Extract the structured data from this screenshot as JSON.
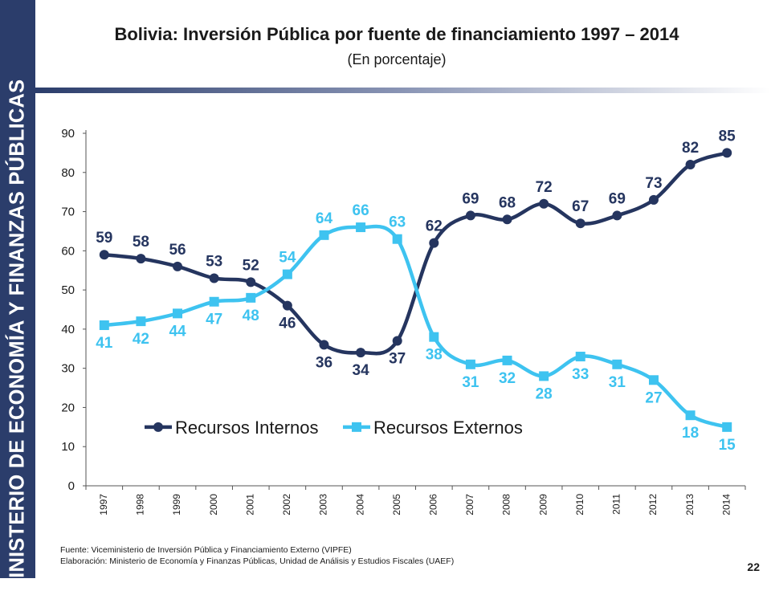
{
  "sidebar": {
    "label": "MINISTERIO DE ECONOMÍA Y FINANZAS PÚBLICAS"
  },
  "header": {
    "title": "Bolivia: Inversión Pública por fuente de financiamiento 1997 – 2014",
    "subtitle": "(En porcentaje)"
  },
  "footer": {
    "source": "Fuente: Viceministerio de Inversión Pública y Financiamiento Externo (VIPFE)",
    "elaboration": "Elaboración: Ministerio de Economía y Finanzas Públicas, Unidad de Análisis y Estudios Fiscales (UAEF)",
    "page_number": "22"
  },
  "colors": {
    "internos": "#25355f",
    "externos": "#3ec3f0",
    "sidebar": "#2b3d6b"
  },
  "chart_data": {
    "type": "line",
    "title": "Bolivia: Inversión Pública por fuente de financiamiento 1997 – 2014",
    "xlabel": "",
    "ylabel": "",
    "ylim": [
      0,
      90
    ],
    "yticks": [
      0,
      10,
      20,
      30,
      40,
      50,
      60,
      70,
      80,
      90
    ],
    "categories": [
      "1997",
      "1998",
      "1999",
      "2000",
      "2001",
      "2002",
      "2003",
      "2004",
      "2005",
      "2006",
      "2007",
      "2008",
      "2009",
      "2010",
      "2011",
      "2012",
      "2013",
      "2014"
    ],
    "series": [
      {
        "name": "Recursos Internos",
        "marker": "circle",
        "values": [
          59,
          58,
          56,
          53,
          52,
          46,
          36,
          34,
          37,
          62,
          69,
          68,
          72,
          67,
          69,
          73,
          82,
          85
        ]
      },
      {
        "name": "Recursos Externos",
        "marker": "square",
        "values": [
          41,
          42,
          44,
          47,
          48,
          54,
          64,
          66,
          63,
          38,
          31,
          32,
          28,
          33,
          31,
          27,
          18,
          15
        ]
      }
    ],
    "legend": "bottom-center",
    "grid": false
  }
}
